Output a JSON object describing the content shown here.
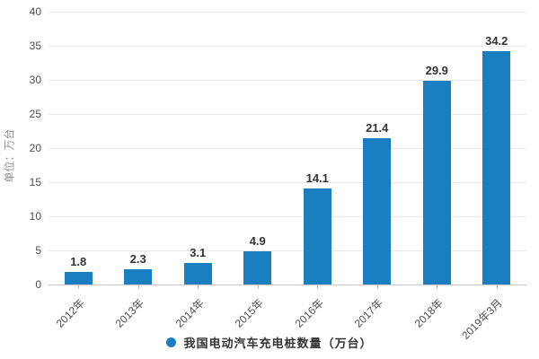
{
  "chart_data": {
    "type": "bar",
    "title": "",
    "unit_label": "单位：万台",
    "legend": "我国电动汽车充电桩数量（万台）",
    "legend_position": "bottom",
    "categories": [
      "2012年",
      "2013年",
      "2014年",
      "2015年",
      "2016年",
      "2017年",
      "2018年",
      "2019年3月"
    ],
    "values": [
      1.8,
      2.3,
      3.1,
      4.9,
      14.1,
      21.4,
      29.9,
      34.2
    ],
    "y_ticks": [
      0,
      5,
      10,
      15,
      20,
      25,
      30,
      35,
      40
    ],
    "ylim": [
      0,
      40
    ],
    "grid": true,
    "bar_color": "#1a7fc1",
    "value_label_color": "#333333",
    "axis_label_color": "#4d4d4d",
    "unit_label_color": "#8c8c8c",
    "gridline_color": "#e7e7e7"
  }
}
